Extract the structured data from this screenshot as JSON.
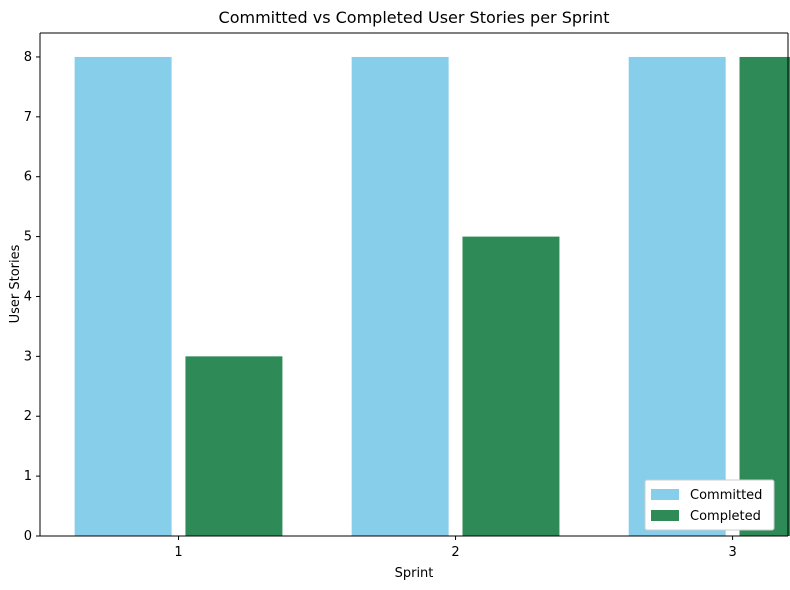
{
  "chart_data": {
    "type": "bar",
    "title": "Committed vs Completed User Stories per Sprint",
    "xlabel": "Sprint",
    "ylabel": "User Stories",
    "categories": [
      "1",
      "2",
      "3"
    ],
    "series": [
      {
        "name": "Committed",
        "values": [
          8,
          8,
          8
        ],
        "color": "#87CEEB"
      },
      {
        "name": "Completed",
        "values": [
          3,
          5,
          8
        ],
        "color": "#2E8B57"
      }
    ],
    "ylim": [
      0,
      8.4
    ],
    "yticks": [
      0,
      1,
      2,
      3,
      4,
      5,
      6,
      7,
      8
    ],
    "grid": false,
    "legend": {
      "position": "lower-right"
    }
  }
}
